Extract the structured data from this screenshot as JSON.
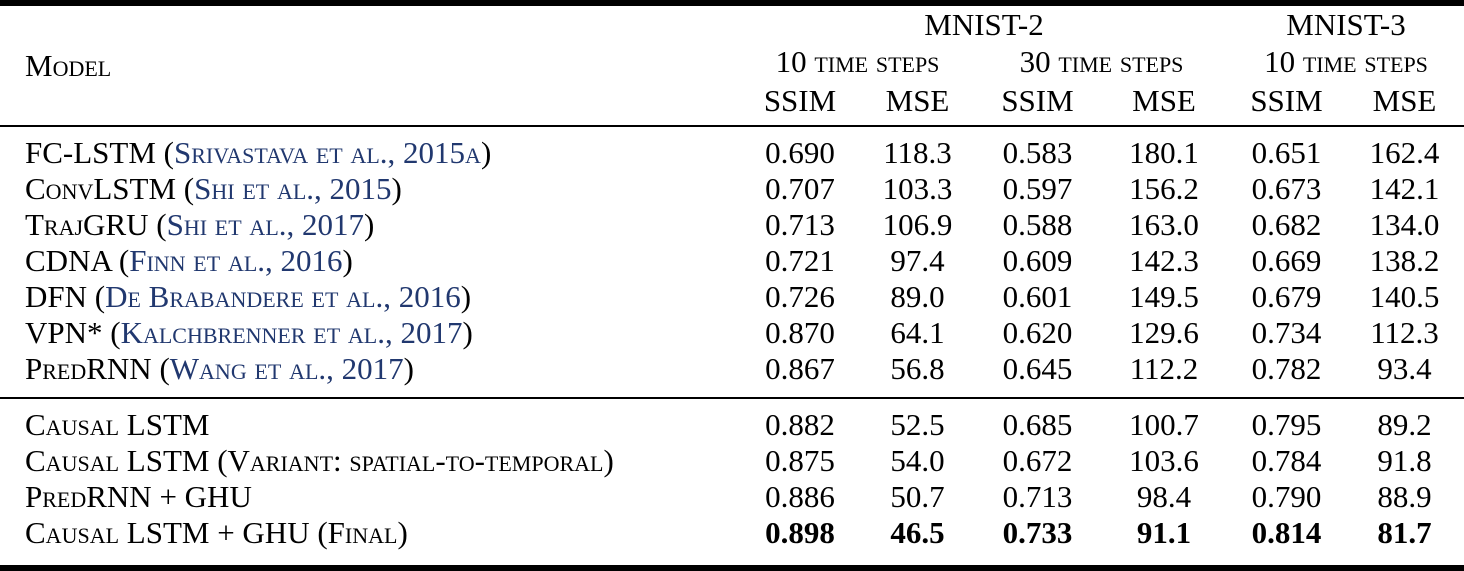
{
  "colors": {
    "text": "#000000",
    "citation_link": "#21386f",
    "rule": "#000000",
    "background": "#ffffff"
  },
  "table": {
    "header": {
      "model_label": "Model",
      "groups": [
        {
          "label": "MNIST-2",
          "span": 4
        },
        {
          "label": "MNIST-3",
          "span": 2
        }
      ],
      "subgroups": [
        {
          "label": "10 time steps",
          "span": 2
        },
        {
          "label": "30 time steps",
          "span": 2
        },
        {
          "label": "10 time steps",
          "span": 2
        }
      ],
      "metrics": [
        "SSIM",
        "MSE",
        "SSIM",
        "MSE",
        "SSIM",
        "MSE"
      ]
    },
    "sections": [
      {
        "rows": [
          {
            "model": "FC-LSTM",
            "citation": "Srivastava et al., 2015a",
            "values": [
              "0.690",
              "118.3",
              "0.583",
              "180.1",
              "0.651",
              "162.4"
            ],
            "bold_values": false
          },
          {
            "model": "ConvLSTM",
            "citation": "Shi et al., 2015",
            "values": [
              "0.707",
              "103.3",
              "0.597",
              "156.2",
              "0.673",
              "142.1"
            ],
            "bold_values": false
          },
          {
            "model": "TrajGRU",
            "citation": "Shi et al., 2017",
            "values": [
              "0.713",
              "106.9",
              "0.588",
              "163.0",
              "0.682",
              "134.0"
            ],
            "bold_values": false
          },
          {
            "model": "CDNA",
            "citation": "Finn et al., 2016",
            "values": [
              "0.721",
              "97.4",
              "0.609",
              "142.3",
              "0.669",
              "138.2"
            ],
            "bold_values": false
          },
          {
            "model": "DFN",
            "citation": "De Brabandere et al., 2016",
            "values": [
              "0.726",
              "89.0",
              "0.601",
              "149.5",
              "0.679",
              "140.5"
            ],
            "bold_values": false
          },
          {
            "model": "VPN*",
            "citation": "Kalchbrenner et al., 2017",
            "values": [
              "0.870",
              "64.1",
              "0.620",
              "129.6",
              "0.734",
              "112.3"
            ],
            "bold_values": false
          },
          {
            "model": "PredRNN",
            "citation": "Wang et al., 2017",
            "values": [
              "0.867",
              "56.8",
              "0.645",
              "112.2",
              "0.782",
              "93.4"
            ],
            "bold_values": false
          }
        ]
      },
      {
        "rows": [
          {
            "model": "Causal LSTM",
            "citation": null,
            "values": [
              "0.882",
              "52.5",
              "0.685",
              "100.7",
              "0.795",
              "89.2"
            ],
            "bold_values": false
          },
          {
            "model": "Causal LSTM (Variant: spatial-to-temporal)",
            "citation": null,
            "values": [
              "0.875",
              "54.0",
              "0.672",
              "103.6",
              "0.784",
              "91.8"
            ],
            "bold_values": false
          },
          {
            "model": "PredRNN + GHU",
            "citation": null,
            "values": [
              "0.886",
              "50.7",
              "0.713",
              "98.4",
              "0.790",
              "88.9"
            ],
            "bold_values": false
          },
          {
            "model": "Causal LSTM + GHU (Final)",
            "citation": null,
            "values": [
              "0.898",
              "46.5",
              "0.733",
              "91.1",
              "0.814",
              "81.7"
            ],
            "bold_values": true
          }
        ]
      }
    ]
  }
}
